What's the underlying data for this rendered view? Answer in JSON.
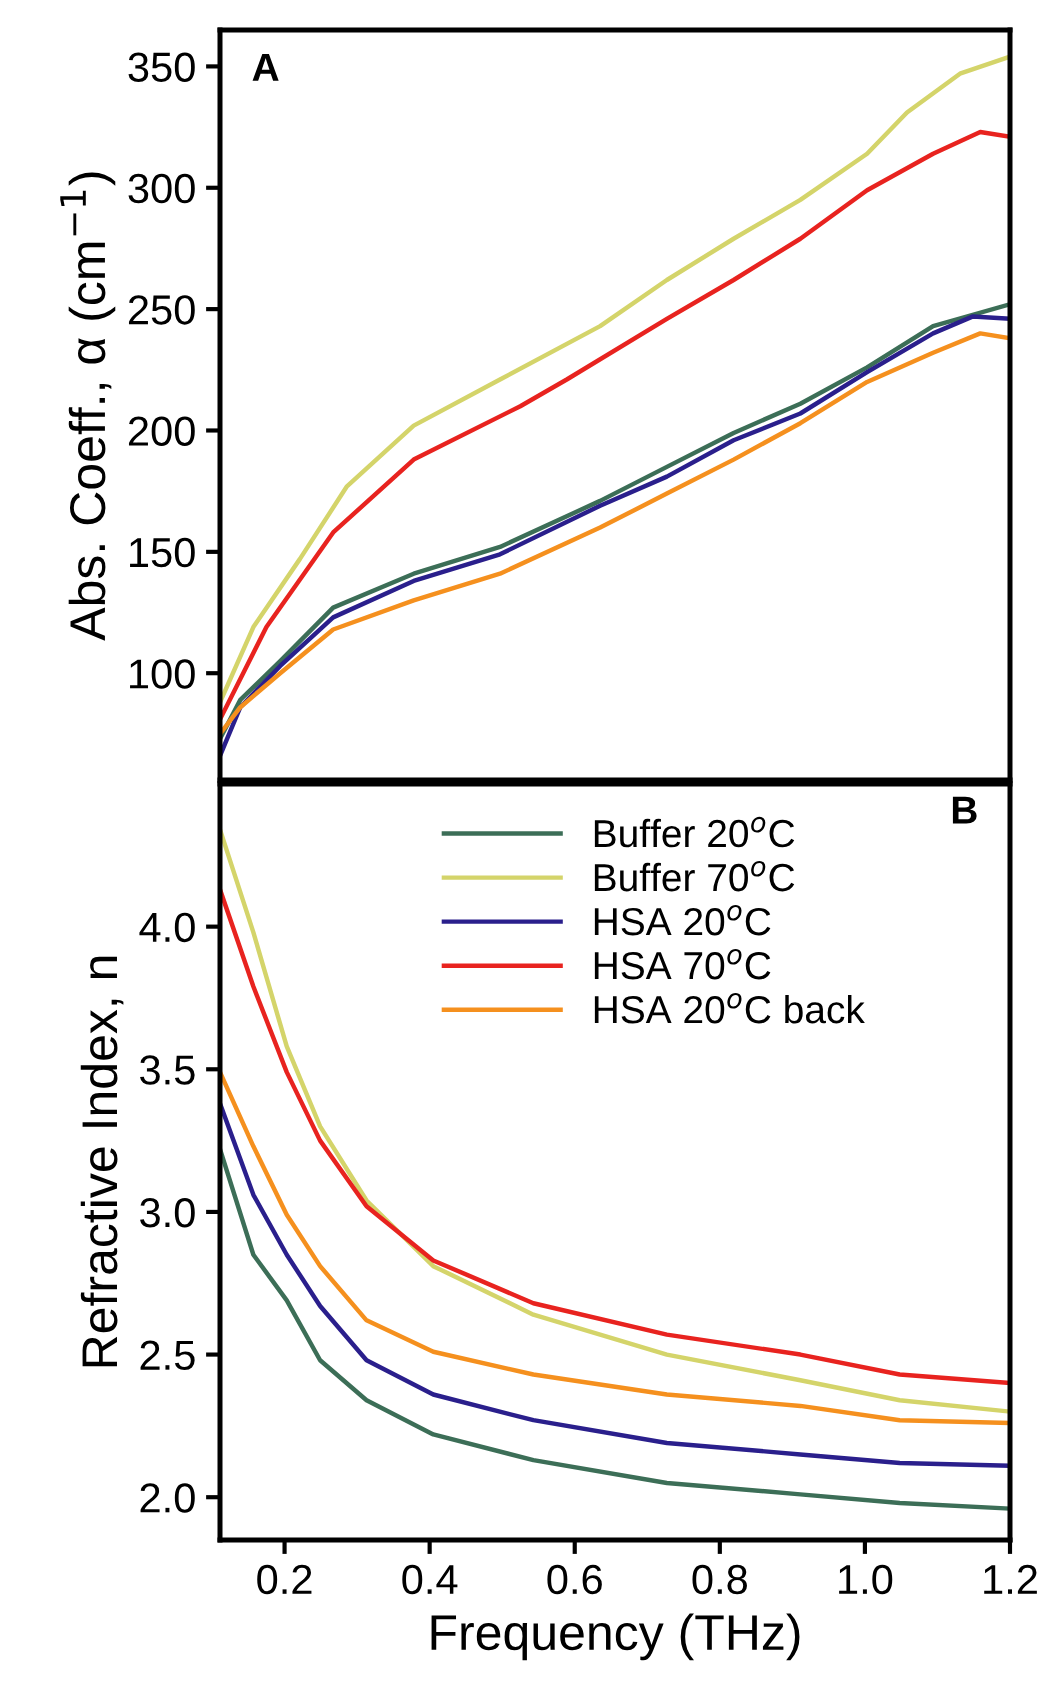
{
  "chart_data": [
    {
      "type": "line",
      "ylabel": "Abs. Coeff., α (cm$^{−1}$)",
      "annotations": [
        "A"
      ],
      "xlim": [
        0.111,
        1.2
      ],
      "ylim": [
        56,
        365
      ],
      "yticks": [
        100,
        150,
        200,
        250,
        300,
        350
      ],
      "tick_labels": "y",
      "legend": false,
      "grid": false,
      "series": [
        {
          "color": "#3c6e57",
          "x": [
            0.111,
            0.139,
            0.194,
            0.267,
            0.378,
            0.497,
            0.635,
            0.727,
            0.819,
            0.911,
            1.003,
            1.094,
            1.2
          ],
          "values": [
            73,
            89,
            105,
            127,
            141,
            152,
            171,
            185,
            199,
            211,
            226,
            243,
            252
          ]
        },
        {
          "color": "#d4d46a",
          "x": [
            0.111,
            0.157,
            0.221,
            0.286,
            0.378,
            0.497,
            0.635,
            0.727,
            0.819,
            0.911,
            1.003,
            1.058,
            1.131,
            1.2
          ],
          "values": [
            88,
            119,
            147,
            177,
            202,
            221,
            243,
            262,
            279,
            295,
            314,
            331,
            347,
            354
          ]
        },
        {
          "color": "#2a1f8c",
          "x": [
            0.111,
            0.139,
            0.194,
            0.267,
            0.378,
            0.497,
            0.635,
            0.727,
            0.819,
            0.911,
            1.003,
            1.094,
            1.149,
            1.2
          ],
          "values": [
            66,
            86,
            103,
            123,
            138,
            149,
            169,
            181,
            196,
            207,
            224,
            240,
            247,
            246
          ]
        },
        {
          "color": "#e8231f",
          "x": [
            0.111,
            0.175,
            0.267,
            0.378,
            0.525,
            0.589,
            0.727,
            0.819,
            0.911,
            1.003,
            1.094,
            1.159,
            1.2
          ],
          "values": [
            81,
            119,
            158,
            188,
            210,
            221,
            246,
            262,
            279,
            299,
            314,
            323,
            321
          ]
        },
        {
          "color": "#f5901e",
          "x": [
            0.111,
            0.139,
            0.194,
            0.267,
            0.378,
            0.497,
            0.635,
            0.727,
            0.819,
            0.911,
            1.003,
            1.094,
            1.159,
            1.2
          ],
          "values": [
            75,
            86,
            100,
            118,
            130,
            141,
            160,
            174,
            188,
            203,
            220,
            232,
            240,
            238
          ]
        }
      ]
    },
    {
      "type": "line",
      "xlabel": "Frequency (THz)",
      "ylabel": "Refractive Index, n",
      "annotations": [
        "B"
      ],
      "xlim": [
        0.111,
        1.2
      ],
      "xticks": [
        {
          "value": 0.2,
          "label": "0.2"
        },
        {
          "value": 0.4,
          "label": "0.4"
        },
        {
          "value": 0.6,
          "label": "0.6"
        },
        {
          "value": 0.8,
          "label": "0.8"
        },
        {
          "value": 1.0,
          "label": "1.0"
        },
        {
          "value": 1.2,
          "label": "1.2"
        }
      ],
      "ylim": [
        1.85,
        4.5
      ],
      "yticks": [
        {
          "value": 2.0,
          "label": "2.0"
        },
        {
          "value": 2.5,
          "label": "2.5"
        },
        {
          "value": 3.0,
          "label": "3.0"
        },
        {
          "value": 3.5,
          "label": "3.5"
        },
        {
          "value": 4.0,
          "label": "4.0"
        }
      ],
      "legend": "top",
      "grid": false,
      "x": [
        0.111,
        0.157,
        0.203,
        0.249,
        0.313,
        0.405,
        0.543,
        0.727,
        0.911,
        1.048,
        1.2
      ],
      "series": [
        {
          "name": "Buffer 20$^{o}$C",
          "color": "#3c6e57",
          "values": [
            3.22,
            2.85,
            2.69,
            2.48,
            2.34,
            2.22,
            2.13,
            2.05,
            2.01,
            1.98,
            1.96
          ]
        },
        {
          "name": "Buffer 70$^{o}$C",
          "color": "#d4d46a",
          "values": [
            4.34,
            3.98,
            3.58,
            3.3,
            3.04,
            2.81,
            2.64,
            2.5,
            2.41,
            2.34,
            2.3
          ]
        },
        {
          "name": "HSA 20$^{o}$C",
          "color": "#2a1f8c",
          "values": [
            3.38,
            3.06,
            2.85,
            2.67,
            2.48,
            2.36,
            2.27,
            2.19,
            2.15,
            2.12,
            2.11
          ]
        },
        {
          "name": "HSA 70$^{o}$C",
          "color": "#e8231f",
          "values": [
            4.13,
            3.79,
            3.49,
            3.25,
            3.02,
            2.83,
            2.68,
            2.57,
            2.5,
            2.43,
            2.4
          ]
        },
        {
          "name": "HSA 20$^{o}$C back",
          "color": "#f5901e",
          "values": [
            3.49,
            3.23,
            2.99,
            2.81,
            2.62,
            2.51,
            2.43,
            2.36,
            2.32,
            2.27,
            2.26
          ]
        }
      ]
    }
  ]
}
